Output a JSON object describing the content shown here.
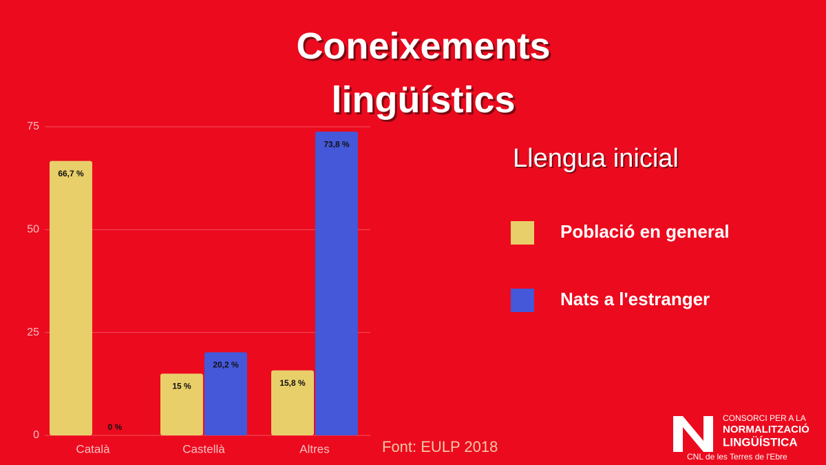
{
  "chart_data": {
    "type": "bar",
    "title": "Coneixements lingüístics",
    "legend_title": "Llengua inicial",
    "source": "Font: EULP 2018",
    "categories": [
      "Català",
      "Castellà",
      "Altres"
    ],
    "series": [
      {
        "name": "Població en general",
        "color": "#e8cf6a",
        "values": [
          66.7,
          15,
          15.8
        ],
        "value_labels": [
          "66,7 %",
          "15 %",
          "15,8 %"
        ]
      },
      {
        "name": "Nats a l'estranger",
        "color": "#4458d9",
        "values": [
          0,
          20.2,
          73.8
        ],
        "value_labels": [
          "0 %",
          "20,2 %",
          "73,8 %"
        ]
      }
    ],
    "ylim": [
      0,
      75
    ],
    "yticks": [
      0,
      25,
      50,
      75
    ],
    "grid": true,
    "legend": "right"
  },
  "logo": {
    "line1": "CONSORCI PER A LA",
    "line2": "NORMALITZACIÓ",
    "line3": "LINGÜÍSTICA",
    "line4": "CNL de les Terres de l'Ebre"
  }
}
